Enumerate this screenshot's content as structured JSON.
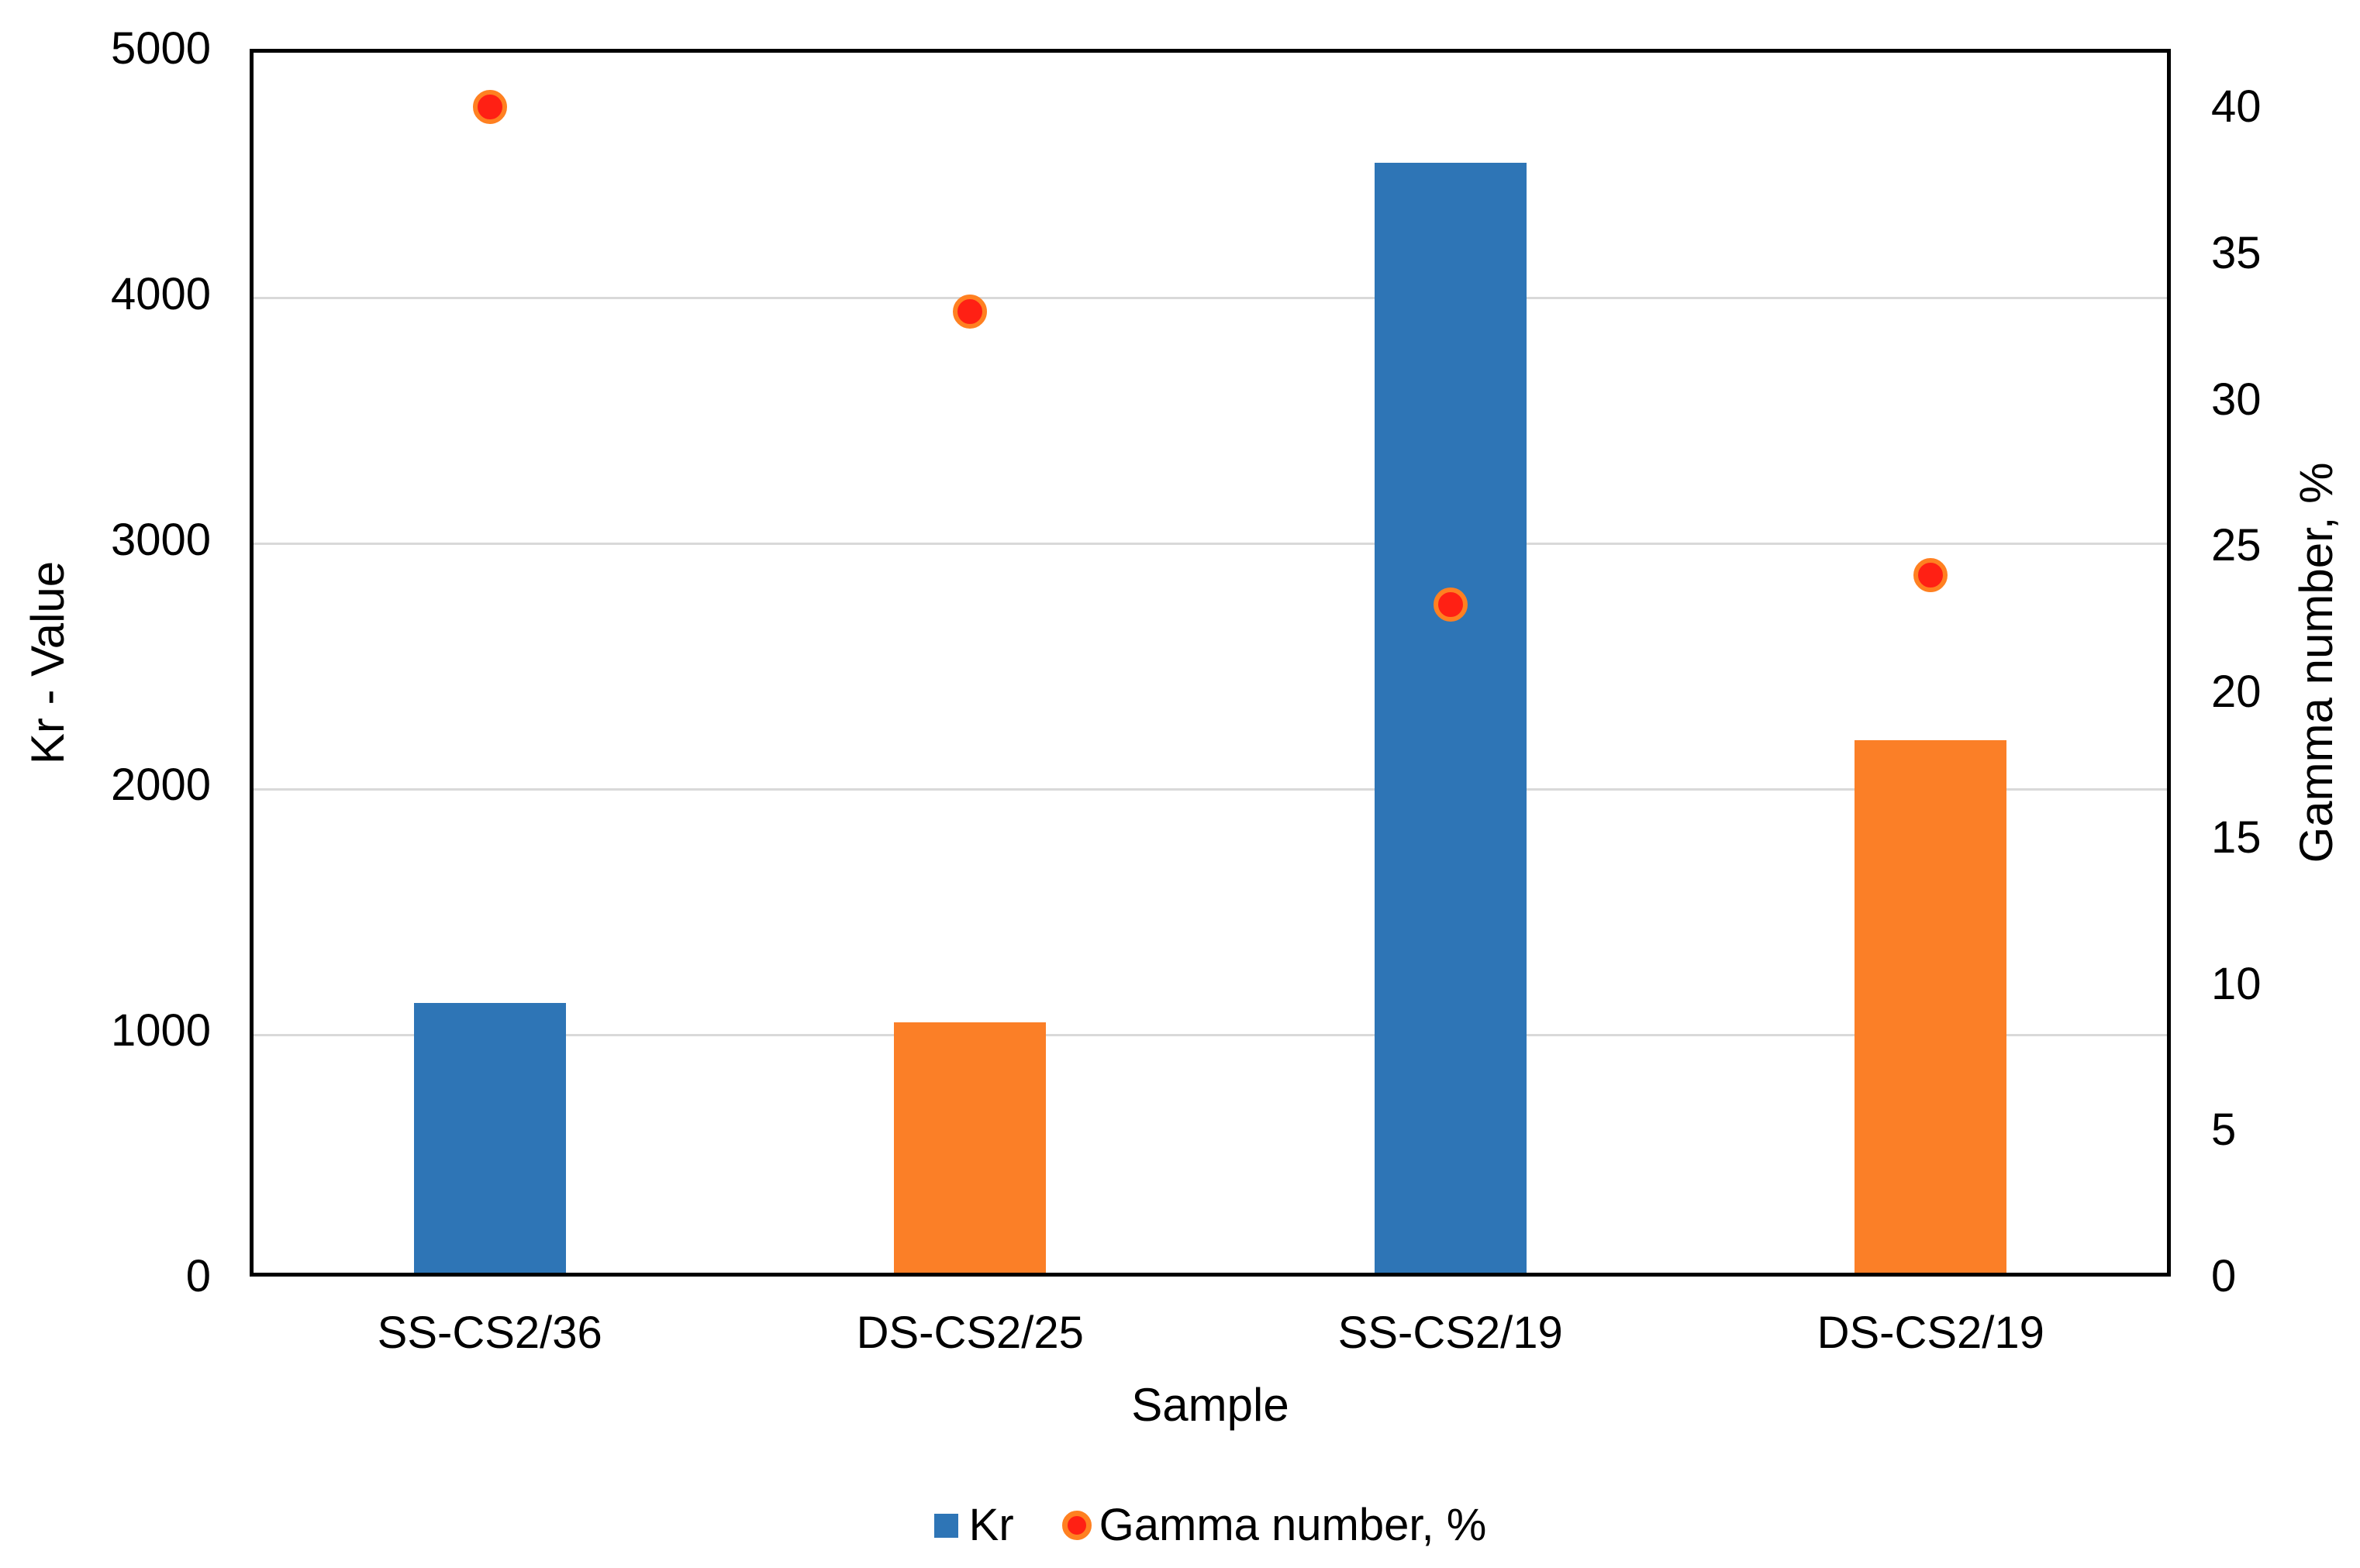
{
  "chart_data": {
    "type": "combo",
    "title": "",
    "categories": [
      "SS-CS2/36",
      "DS-CS2/25",
      "SS-CS2/19",
      "DS-CS2/19"
    ],
    "series": [
      {
        "name": "Kr",
        "type": "bar",
        "axis": "left",
        "values": [
          1100,
          1020,
          4520,
          2170
        ],
        "colors": [
          "#2E75B6",
          "#FB7F27",
          "#2E75B6",
          "#FB7F27"
        ]
      },
      {
        "name": "Gamma number, %",
        "type": "scatter",
        "axis": "right",
        "values": [
          40,
          33,
          23,
          24
        ],
        "marker_fill": "#FF2014",
        "marker_border": "#FF8021"
      }
    ],
    "xlabel": "Sample",
    "ylabel_left": "Kr - Value",
    "ylabel_right": "Gamma number, %",
    "ylim_left": [
      0,
      5000
    ],
    "yticks_left": [
      0,
      1000,
      2000,
      3000,
      4000,
      5000
    ],
    "ylim_right": [
      0,
      42
    ],
    "yticks_right": [
      0,
      5,
      10,
      15,
      20,
      25,
      30,
      35,
      40
    ],
    "grid": true,
    "grid_color": "#D9D9D9",
    "axis_color": "#000000",
    "legend_position": "bottom"
  }
}
